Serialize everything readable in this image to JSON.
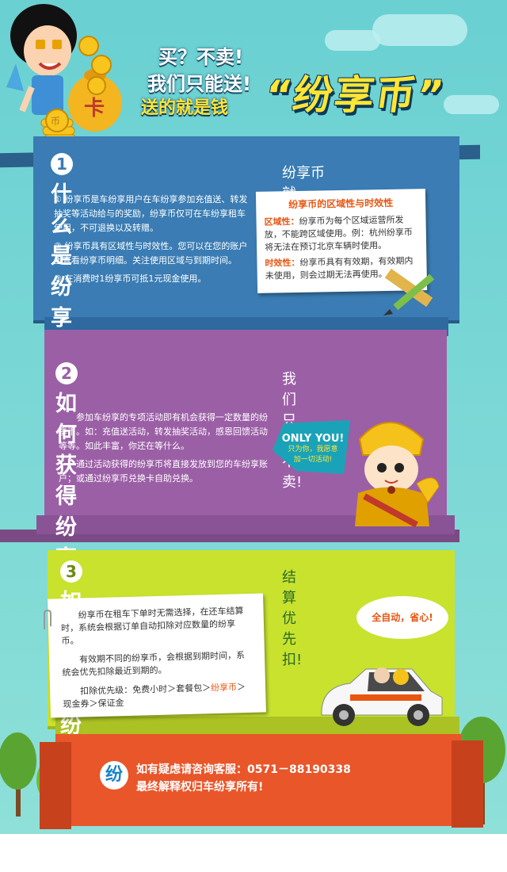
{
  "header": {
    "line1": "买？不卖!",
    "line2": "我们只能送!",
    "line3": "送的就是钱",
    "brand": "“纷享币”",
    "coin_glyph": "币",
    "bag_glyph": "卡"
  },
  "section1": {
    "number": "1",
    "title": "什么是纷享币?",
    "subtitle": "纷享币就是“钱”!",
    "items": [
      "① 纷享币是车纷享用户在车纷享参加充值送、转发抽奖等活动给与的奖励，纷享币仅可在车纷享租车使用，不可退换以及转赠。",
      "② 纷享币具有区域性与时效性。您可以在您的账户里查看纷享币明细。关注使用区域与到期时间。",
      "③ 在消费时1纷享币可抵1元现金使用。"
    ],
    "note": {
      "title": "纷享币的区域性与时效性",
      "region_label": "区域性：",
      "region_text": "纷享币为每个区域运营所发放，不能跨区域使用。例：杭州纷享币将无法在预订北京车辆时使用。",
      "time_label": "时效性：",
      "time_text": "纷享币具有有效期，有效期内未使用，则会过期无法再使用。"
    }
  },
  "section2": {
    "number": "2",
    "title": "如何获得纷享币?",
    "subtitle": "我们只送不卖!",
    "paragraphs": [
      "参加车纷享的专项活动即有机会获得一定数量的纷享币。如：充值送活动，转发抽奖活动，感恩回馈活动等等。如此丰富，你还在等什么。",
      "通过活动获得的纷享币将直接发放到您的车纷享账户；或通过纷享币兑换卡自助兑换。"
    ],
    "bubble_title": "ONLY YOU!",
    "bubble_line1": "只为你，我愿意",
    "bubble_line2": "加一切活动!"
  },
  "section3": {
    "number": "3",
    "title": "如何使用纷享币?",
    "subtitle": "结算优先扣!",
    "paragraphs": [
      "纷享币在租车下单时无需选择，在还车结算时，系统会根据订单自动扣除对应数量的纷享币。",
      "有效期不同的纷享币，会根据到期时间，系统会优先扣除最近到期的。"
    ],
    "priority_prefix": "扣除优先级：免费小时＞套餐包＞",
    "priority_highlight": "纷享币",
    "priority_suffix": "＞现金券＞保证金",
    "bubble": "全自动，省心!"
  },
  "footer": {
    "logo_glyph": "纷",
    "line1": "如有疑虑请咨询客服：0571－88190338",
    "line2": "最终解释权归车纷享所有!"
  },
  "colors": {
    "sky": "#6ad0d2",
    "section1": "#3a7cb3",
    "section2": "#9b5fa6",
    "section3": "#c8e22e",
    "footer": "#e9562a",
    "accent_orange": "#e95612",
    "brand_yellow": "#ffe536"
  }
}
